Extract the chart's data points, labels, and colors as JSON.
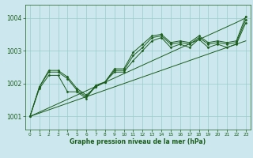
{
  "title": "Graphe pression niveau de la mer (hPa)",
  "bg_color": "#cce8ee",
  "grid_color": "#99cccc",
  "line_color": "#1a5c1a",
  "marker_color": "#1a5c1a",
  "xlim": [
    -0.5,
    23.5
  ],
  "ylim": [
    1000.6,
    1004.4
  ],
  "yticks": [
    1001,
    1002,
    1003,
    1004
  ],
  "xticks": [
    0,
    1,
    2,
    3,
    4,
    5,
    6,
    7,
    8,
    9,
    10,
    11,
    12,
    13,
    14,
    15,
    16,
    17,
    18,
    19,
    20,
    21,
    22,
    23
  ],
  "series_measured": [
    [
      1001.0,
      1001.9,
      1002.4,
      1002.4,
      1002.2,
      1001.85,
      1001.65,
      1001.9,
      1002.05,
      1002.45,
      1002.45,
      1002.95,
      1003.2,
      1003.45,
      1003.5,
      1003.25,
      1003.3,
      1003.25,
      1003.45,
      1003.25,
      1003.3,
      1003.25,
      1003.3,
      1004.05
    ],
    [
      1001.0,
      1001.9,
      1002.35,
      1002.35,
      1002.15,
      1001.8,
      1001.6,
      1001.9,
      1002.05,
      1002.4,
      1002.4,
      1002.85,
      1003.1,
      1003.4,
      1003.45,
      1003.2,
      1003.25,
      1003.2,
      1003.4,
      1003.2,
      1003.25,
      1003.2,
      1003.25,
      1003.95
    ],
    [
      1001.0,
      1001.85,
      1002.25,
      1002.25,
      1001.75,
      1001.75,
      1001.55,
      1001.95,
      1002.05,
      1002.35,
      1002.35,
      1002.7,
      1003.0,
      1003.3,
      1003.4,
      1003.1,
      1003.2,
      1003.1,
      1003.35,
      1003.1,
      1003.2,
      1003.1,
      1003.2,
      1003.85
    ]
  ],
  "series_straight": [
    [
      1001.0,
      1001.13,
      1001.26,
      1001.39,
      1001.52,
      1001.65,
      1001.78,
      1001.91,
      1002.04,
      1002.17,
      1002.3,
      1002.43,
      1002.56,
      1002.69,
      1002.82,
      1002.95,
      1003.08,
      1003.21,
      1003.34,
      1003.47,
      1003.6,
      1003.73,
      1003.86,
      1004.0
    ],
    [
      1001.0,
      1001.1,
      1001.2,
      1001.3,
      1001.4,
      1001.5,
      1001.6,
      1001.7,
      1001.8,
      1001.9,
      1002.0,
      1002.1,
      1002.2,
      1002.3,
      1002.4,
      1002.5,
      1002.6,
      1002.7,
      1002.8,
      1002.9,
      1003.0,
      1003.1,
      1003.2,
      1003.3
    ]
  ]
}
